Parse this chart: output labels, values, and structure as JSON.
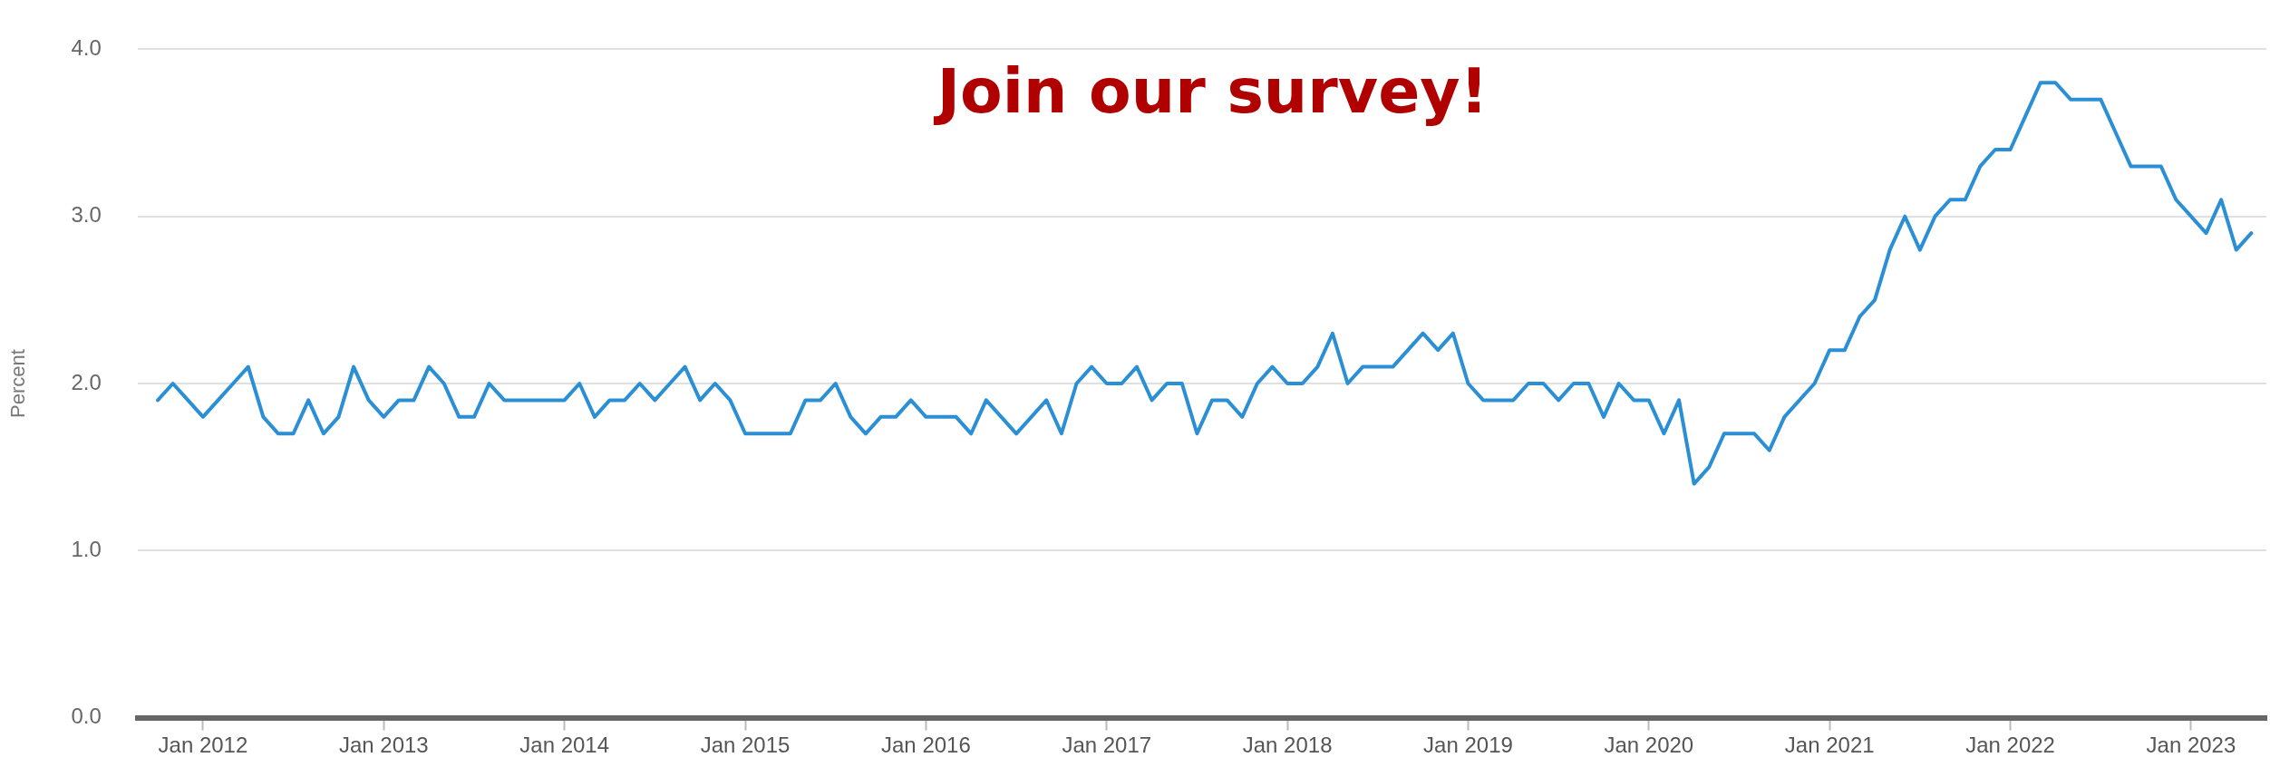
{
  "chart_data": {
    "type": "line",
    "ylabel": "Percent",
    "annotations": [
      "Join our survey!"
    ],
    "grid": "y",
    "legend": false,
    "marker": "none",
    "line_style": "solid",
    "x": [
      "2011-10",
      "2011-11",
      "2011-12",
      "2012-01",
      "2012-02",
      "2012-03",
      "2012-04",
      "2012-05",
      "2012-06",
      "2012-07",
      "2012-08",
      "2012-09",
      "2012-10",
      "2012-11",
      "2012-12",
      "2013-01",
      "2013-02",
      "2013-03",
      "2013-04",
      "2013-05",
      "2013-06",
      "2013-07",
      "2013-08",
      "2013-09",
      "2013-10",
      "2013-11",
      "2013-12",
      "2014-01",
      "2014-02",
      "2014-03",
      "2014-04",
      "2014-05",
      "2014-06",
      "2014-07",
      "2014-08",
      "2014-09",
      "2014-10",
      "2014-11",
      "2014-12",
      "2015-01",
      "2015-02",
      "2015-03",
      "2015-04",
      "2015-05",
      "2015-06",
      "2015-07",
      "2015-08",
      "2015-09",
      "2015-10",
      "2015-11",
      "2015-12",
      "2016-01",
      "2016-02",
      "2016-03",
      "2016-04",
      "2016-05",
      "2016-06",
      "2016-07",
      "2016-08",
      "2016-09",
      "2016-10",
      "2016-11",
      "2016-12",
      "2017-01",
      "2017-02",
      "2017-03",
      "2017-04",
      "2017-05",
      "2017-06",
      "2017-07",
      "2017-08",
      "2017-09",
      "2017-10",
      "2017-11",
      "2017-12",
      "2018-01",
      "2018-02",
      "2018-03",
      "2018-04",
      "2018-05",
      "2018-06",
      "2018-07",
      "2018-08",
      "2018-09",
      "2018-10",
      "2018-11",
      "2018-12",
      "2019-01",
      "2019-02",
      "2019-03",
      "2019-04",
      "2019-05",
      "2019-06",
      "2019-07",
      "2019-08",
      "2019-09",
      "2019-10",
      "2019-11",
      "2019-12",
      "2020-01",
      "2020-02",
      "2020-03",
      "2020-04",
      "2020-05",
      "2020-06",
      "2020-07",
      "2020-08",
      "2020-09",
      "2020-10",
      "2020-11",
      "2020-12",
      "2021-01",
      "2021-02",
      "2021-03",
      "2021-04",
      "2021-05",
      "2021-06",
      "2021-07",
      "2021-08",
      "2021-09",
      "2021-10",
      "2021-11",
      "2021-12",
      "2022-01",
      "2022-02",
      "2022-03",
      "2022-04",
      "2022-05",
      "2022-06",
      "2022-07",
      "2022-08",
      "2022-09",
      "2022-10",
      "2022-11",
      "2022-12",
      "2023-01",
      "2023-02",
      "2023-03",
      "2023-04",
      "2023-05"
    ],
    "series": [
      {
        "color": "#2a8fd4",
        "values": [
          1.9,
          2.0,
          1.9,
          1.8,
          1.9,
          2.0,
          2.1,
          1.8,
          1.7,
          1.7,
          1.9,
          1.7,
          1.8,
          2.1,
          1.9,
          1.8,
          1.9,
          1.9,
          2.1,
          2.0,
          1.8,
          1.8,
          2.0,
          1.9,
          1.9,
          1.9,
          1.9,
          1.9,
          2.0,
          1.8,
          1.9,
          1.9,
          2.0,
          1.9,
          2.0,
          2.1,
          1.9,
          2.0,
          1.9,
          1.7,
          1.7,
          1.7,
          1.7,
          1.9,
          1.9,
          2.0,
          1.8,
          1.7,
          1.8,
          1.8,
          1.9,
          1.8,
          1.8,
          1.8,
          1.7,
          1.9,
          1.8,
          1.7,
          1.8,
          1.9,
          1.7,
          2.0,
          2.1,
          2.0,
          2.0,
          2.1,
          1.9,
          2.0,
          2.0,
          1.7,
          1.9,
          1.9,
          1.8,
          2.0,
          2.1,
          2.0,
          2.0,
          2.1,
          2.3,
          2.0,
          2.1,
          2.1,
          2.1,
          2.2,
          2.3,
          2.2,
          2.3,
          2.0,
          1.9,
          1.9,
          1.9,
          2.0,
          2.0,
          1.9,
          2.0,
          2.0,
          1.8,
          2.0,
          1.9,
          1.9,
          1.7,
          1.9,
          1.4,
          1.5,
          1.7,
          1.7,
          1.7,
          1.6,
          1.8,
          1.9,
          2.0,
          2.2,
          2.2,
          2.4,
          2.5,
          2.8,
          3.0,
          2.8,
          3.0,
          3.1,
          3.1,
          3.3,
          3.4,
          3.4,
          3.6,
          3.8,
          3.8,
          3.7,
          3.7,
          3.7,
          3.5,
          3.3,
          3.3,
          3.3,
          3.1,
          3.0,
          2.9,
          3.1,
          2.8,
          2.9
        ]
      }
    ],
    "xlim": [
      "2011-08-21",
      "2023-06-01"
    ],
    "xticks": [
      {
        "value": "2012-01",
        "label": "Jan 2012"
      },
      {
        "value": "2013-01",
        "label": "Jan 2013"
      },
      {
        "value": "2014-01",
        "label": "Jan 2014"
      },
      {
        "value": "2015-01",
        "label": "Jan 2015"
      },
      {
        "value": "2016-01",
        "label": "Jan 2016"
      },
      {
        "value": "2017-01",
        "label": "Jan 2017"
      },
      {
        "value": "2018-01",
        "label": "Jan 2018"
      },
      {
        "value": "2019-01",
        "label": "Jan 2019"
      },
      {
        "value": "2020-01",
        "label": "Jan 2020"
      },
      {
        "value": "2021-01",
        "label": "Jan 2021"
      },
      {
        "value": "2022-01",
        "label": "Jan 2022"
      },
      {
        "value": "2023-01",
        "label": "Jan 2023"
      }
    ],
    "ylim": [
      0,
      4
    ],
    "yticks": [
      {
        "value": 0,
        "label": "0.0"
      },
      {
        "value": 1,
        "label": "1.0"
      },
      {
        "value": 2,
        "label": "2.0"
      },
      {
        "value": 3,
        "label": "3.0"
      },
      {
        "value": 4,
        "label": "4.0"
      }
    ]
  }
}
